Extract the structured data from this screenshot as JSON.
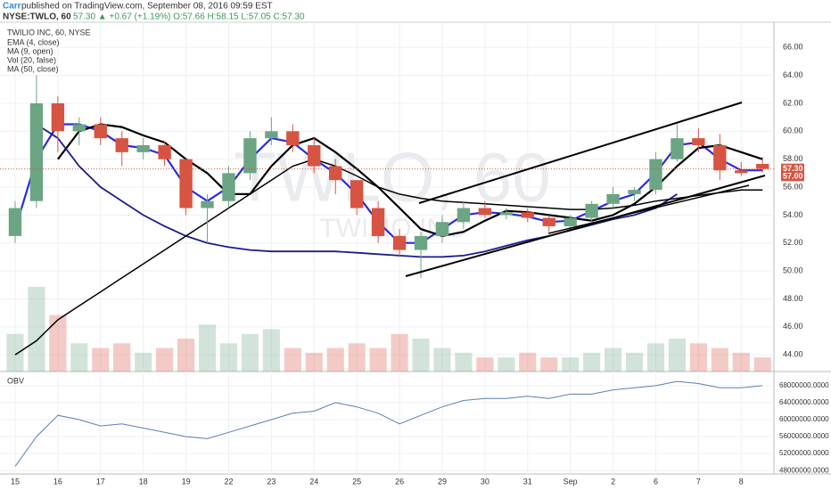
{
  "header": {
    "author": "Carr",
    "published": "published on TradingView.com, September 08, 2016 09:59 EST",
    "symbol": "NYSE:TWLO, 60",
    "quote": "57.30 ▲ +0.67 (+1.19%) O:57.66 H:58.15 L:57.05 C:57.30"
  },
  "chart_data": [
    {
      "type": "candlestick",
      "title": "TWILIO INC, 60, NYSE",
      "watermark": [
        "TWLO, 60",
        "TWILIO INC"
      ],
      "categories": [
        "15",
        null,
        "16",
        null,
        "17",
        null,
        "18",
        null,
        "19",
        null,
        "22",
        null,
        "23",
        null,
        "24",
        null,
        "25",
        null,
        "26",
        null,
        "29",
        null,
        "30",
        null,
        "31",
        null,
        "Sep",
        null,
        "2",
        null,
        "6",
        null,
        "7",
        null,
        "8",
        null
      ],
      "open": [
        52.5,
        55,
        62,
        60,
        60.5,
        59.5,
        58.5,
        59,
        58,
        54.5,
        55,
        57,
        59.5,
        60,
        59,
        57.5,
        56.5,
        54.5,
        52.5,
        51.5,
        52.5,
        53.5,
        54.5,
        54,
        54.2,
        53.8,
        53.2,
        53.8,
        54.8,
        55.5,
        55.8,
        58,
        59.5,
        59,
        57.2,
        57.66
      ],
      "high": [
        55,
        64,
        62.5,
        61,
        61,
        60,
        59.5,
        59.3,
        58,
        55.5,
        57.5,
        60,
        61,
        60.5,
        59.5,
        58,
        56.5,
        55,
        53,
        52.8,
        54,
        55,
        55,
        54.5,
        54.5,
        54,
        54,
        55,
        56,
        56,
        58.5,
        60.5,
        60.2,
        59.8,
        57.8,
        58.15
      ],
      "low": [
        52,
        54.5,
        58.5,
        59,
        59,
        57.5,
        58,
        57.5,
        54,
        52,
        54.5,
        56.5,
        59,
        58.5,
        57,
        55.5,
        54,
        52,
        51,
        49.5,
        52,
        53,
        53.8,
        53.7,
        53.5,
        52.8,
        53,
        53.5,
        54.5,
        55,
        55.5,
        57.8,
        58.5,
        56.5,
        56.8,
        57.05
      ],
      "close": [
        54.5,
        62,
        60,
        60.5,
        59.5,
        58.5,
        59,
        58,
        54.5,
        55,
        57,
        59.5,
        60,
        59,
        57.5,
        56.5,
        54.5,
        52.5,
        51.5,
        52.5,
        53.5,
        54.5,
        54,
        54.2,
        53.8,
        53.2,
        53.8,
        54.8,
        55.5,
        55.8,
        58,
        59.5,
        59,
        57.2,
        57,
        57.3
      ],
      "up_color": "#6ba583",
      "down_color": "#d75442",
      "volume_name": "Vol (20, false)",
      "volume": [
        400,
        900,
        600,
        300,
        250,
        300,
        200,
        250,
        350,
        500,
        300,
        400,
        450,
        250,
        200,
        250,
        300,
        250,
        400,
        350,
        250,
        200,
        150,
        150,
        200,
        150,
        150,
        200,
        250,
        200,
        300,
        350,
        300,
        250,
        200,
        150
      ],
      "series": [
        {
          "name": "EMA (4, close)",
          "color": "#2a2ae0",
          "width": 2.2,
          "values": [
            53,
            58,
            60.5,
            60.5,
            60,
            59,
            58.8,
            58.3,
            56,
            55,
            56,
            58,
            59.5,
            59.2,
            58,
            57,
            55.5,
            53.5,
            52,
            52,
            53,
            54,
            54.2,
            54.1,
            53.9,
            53.5,
            53.6,
            54.3,
            55,
            55.5,
            57,
            59,
            59.2,
            58,
            57.2,
            57.2
          ]
        },
        {
          "name": "MA (9, open)",
          "color": "#000000",
          "width": 2.2,
          "values": [
            null,
            null,
            58,
            60,
            60.5,
            60.3,
            59.7,
            59.2,
            58,
            57,
            55.5,
            55.5,
            57.5,
            59,
            59.5,
            58.5,
            57.3,
            56,
            54.5,
            53,
            52.5,
            52.8,
            53.6,
            54.3,
            54.2,
            54,
            53.8,
            53.6,
            54,
            54.8,
            56,
            57.5,
            58.8,
            59,
            58.5,
            58
          ]
        },
        {
          "name": "MA (50, close)",
          "color": "#1c1c8c",
          "width": 1.8,
          "values": [
            null,
            60.5,
            59.5,
            57.5,
            56,
            55,
            54,
            53.2,
            52.5,
            52,
            51.7,
            51.5,
            51.4,
            51.4,
            51.4,
            51.4,
            51.3,
            51.2,
            51.1,
            51,
            51,
            51.1,
            51.4,
            51.8,
            52.2,
            52.5,
            52.9,
            53.3,
            53.7,
            54,
            54.5,
            55.5,
            null,
            null,
            null,
            null
          ]
        },
        {
          "color": "#000000",
          "width": 1.5,
          "values": [
            44,
            45,
            46.5,
            47.5,
            48.5,
            49.5,
            50.5,
            51.5,
            52.5,
            53.5,
            54.5,
            55.5,
            56.5,
            57.5,
            58,
            57.5,
            56.8,
            56,
            55.5,
            55.2,
            55,
            54.9,
            54.8,
            54.7,
            54.6,
            54.5,
            54.4,
            54.4,
            54.5,
            54.7,
            55,
            55.2,
            55.4,
            55.6,
            55.8,
            55.8
          ]
        }
      ],
      "price_labels": [
        {
          "value": 57.3,
          "label": "57.30"
        },
        {
          "value": 57.0,
          "label": "57.00"
        }
      ],
      "ylim": [
        42.8,
        67.8
      ],
      "yticks": [
        {
          "value": 44,
          "label": "44.00"
        },
        {
          "value": 46,
          "label": "46.00"
        },
        {
          "value": 48,
          "label": "48.00"
        },
        {
          "value": 50,
          "label": "50.00"
        },
        {
          "value": 52,
          "label": "52.00"
        },
        {
          "value": 54,
          "label": "54.00"
        },
        {
          "value": 56,
          "label": "56.00"
        },
        {
          "value": 58,
          "label": "58.00"
        },
        {
          "value": 60,
          "label": "60.00"
        },
        {
          "value": 62,
          "label": "62.00"
        },
        {
          "value": 64,
          "label": "64.00"
        },
        {
          "value": 66,
          "label": "66.00"
        }
      ],
      "grid": true
    },
    {
      "type": "line",
      "title": "OBV",
      "series": [
        {
          "color": "#5b7fb5",
          "values": [
            49000000,
            56000000,
            61000000,
            60000000,
            58500000,
            59000000,
            58000000,
            57000000,
            56000000,
            55500000,
            57000000,
            58500000,
            60000000,
            61500000,
            62000000,
            64000000,
            63000000,
            61500000,
            59000000,
            61000000,
            63000000,
            64500000,
            65000000,
            65000000,
            65500000,
            65000000,
            66000000,
            66000000,
            67000000,
            67500000,
            68000000,
            69000000,
            68500000,
            67500000,
            67500000,
            68000000
          ]
        }
      ],
      "ylim": [
        47200000,
        70700000
      ],
      "yticks": [
        {
          "value": 48000000,
          "label": "48000000.0000"
        },
        {
          "value": 52000000,
          "label": "52000000.0000"
        },
        {
          "value": 56000000,
          "label": "56000000.0000"
        },
        {
          "value": 60000000,
          "label": "60000000.0000"
        },
        {
          "value": 64000000,
          "label": "64000000.0000"
        },
        {
          "value": 68000000,
          "label": "68000000.0000"
        }
      ],
      "grid": true
    }
  ]
}
